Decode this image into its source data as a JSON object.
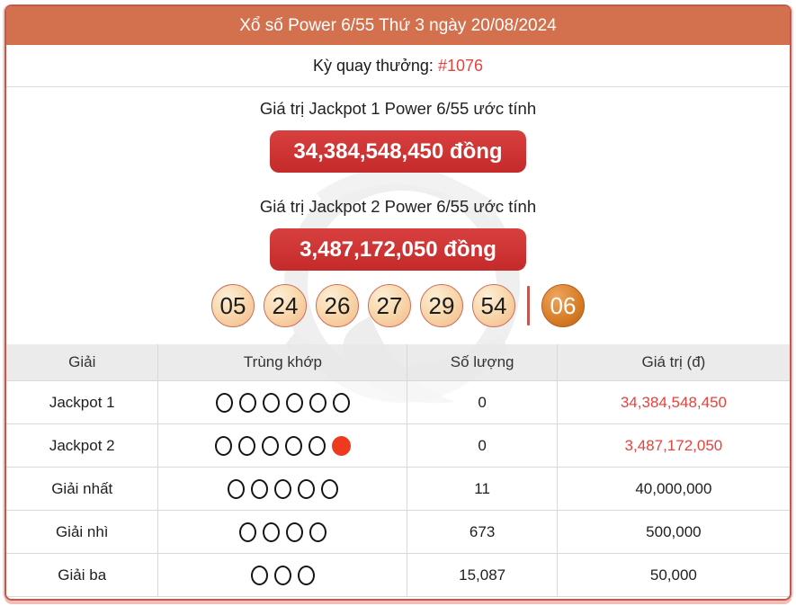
{
  "header": {
    "title": "Xổ số Power 6/55 Thứ 3 ngày 20/08/2024"
  },
  "draw": {
    "label": "Kỳ quay thưởng:",
    "number": "#1076"
  },
  "jackpot1": {
    "label": "Giá trị Jackpot 1 Power 6/55 ước tính",
    "amount": "34,384,548,450 đồng"
  },
  "jackpot2": {
    "label": "Giá trị Jackpot 2 Power 6/55 ước tính",
    "amount": "3,487,172,050 đồng"
  },
  "balls": {
    "main": [
      "05",
      "24",
      "26",
      "27",
      "29",
      "54"
    ],
    "power": "06"
  },
  "table": {
    "headers": [
      "Giải",
      "Trùng khớp",
      "Số lượng",
      "Giá trị (đ)"
    ],
    "rows": [
      {
        "prize": "Jackpot 1",
        "match_open": 6,
        "match_filled": 0,
        "count": "0",
        "value": "34,384,548,450",
        "value_red": true
      },
      {
        "prize": "Jackpot 2",
        "match_open": 5,
        "match_filled": 1,
        "count": "0",
        "value": "3,487,172,050",
        "value_red": true
      },
      {
        "prize": "Giải nhất",
        "match_open": 5,
        "match_filled": 0,
        "count": "11",
        "value": "40,000,000",
        "value_red": false
      },
      {
        "prize": "Giải nhì",
        "match_open": 4,
        "match_filled": 0,
        "count": "673",
        "value": "500,000",
        "value_red": false
      },
      {
        "prize": "Giải ba",
        "match_open": 3,
        "match_filled": 0,
        "count": "15,087",
        "value": "50,000",
        "value_red": false
      }
    ]
  },
  "colors": {
    "header-bg": "#d3714e",
    "card-border": "#c4584e",
    "button-red1": "#d84040",
    "button-red2": "#c52a2a",
    "value-red": "#e8423c",
    "ball-border": "#c9705e",
    "circle-red": "#ee3b20",
    "shadow-pink": "#f0beb6",
    "shadow-pink-light": "#f6d4cd"
  }
}
